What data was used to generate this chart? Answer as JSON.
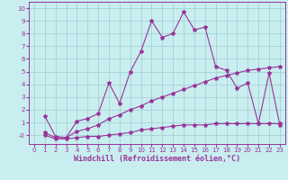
{
  "xlabel": "Windchill (Refroidissement éolien,°C)",
  "xlim": [
    -0.5,
    23.5
  ],
  "ylim": [
    -0.7,
    10.5
  ],
  "xticks": [
    0,
    1,
    2,
    3,
    4,
    5,
    6,
    7,
    8,
    9,
    10,
    11,
    12,
    13,
    14,
    15,
    16,
    17,
    18,
    19,
    20,
    21,
    22,
    23
  ],
  "yticks": [
    0,
    1,
    2,
    3,
    4,
    5,
    6,
    7,
    8,
    9,
    10
  ],
  "bg_color": "#c8eef0",
  "grid_color": "#a0ccd0",
  "line_color": "#993399",
  "line1_x": [
    1,
    2,
    3,
    4,
    5,
    6,
    7,
    8,
    9,
    10,
    11,
    12,
    13,
    14,
    15,
    16,
    17,
    18,
    19,
    20,
    21,
    22,
    23
  ],
  "line1_y": [
    1.5,
    -0.1,
    -0.2,
    1.1,
    1.3,
    1.7,
    4.1,
    2.5,
    5.0,
    6.6,
    9.0,
    7.7,
    8.0,
    9.7,
    8.3,
    8.5,
    5.4,
    5.1,
    3.7,
    4.1,
    0.9,
    4.9,
    0.8
  ],
  "line2_x": [
    1,
    2,
    3,
    4,
    5,
    6,
    7,
    8,
    9,
    10,
    11,
    12,
    13,
    14,
    15,
    16,
    17,
    18,
    19,
    20,
    21,
    22,
    23
  ],
  "line2_y": [
    0.2,
    -0.2,
    -0.2,
    0.3,
    0.5,
    0.8,
    1.3,
    1.6,
    2.0,
    2.3,
    2.7,
    3.0,
    3.3,
    3.6,
    3.9,
    4.2,
    4.5,
    4.7,
    4.9,
    5.1,
    5.2,
    5.3,
    5.4
  ],
  "line3_x": [
    1,
    2,
    3,
    4,
    5,
    6,
    7,
    8,
    9,
    10,
    11,
    12,
    13,
    14,
    15,
    16,
    17,
    18,
    19,
    20,
    21,
    22,
    23
  ],
  "line3_y": [
    0.0,
    -0.3,
    -0.3,
    -0.2,
    -0.1,
    -0.1,
    0.0,
    0.1,
    0.2,
    0.4,
    0.5,
    0.6,
    0.7,
    0.8,
    0.8,
    0.8,
    0.9,
    0.9,
    0.9,
    0.9,
    0.9,
    0.9,
    0.9
  ],
  "marker": "*",
  "marker_size": 3,
  "linewidth": 0.8,
  "tick_fontsize": 5,
  "xlabel_fontsize": 6,
  "tick_color": "#993399",
  "axis_color": "#993399"
}
